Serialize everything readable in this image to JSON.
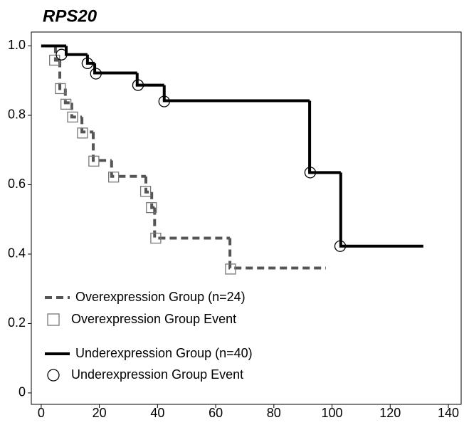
{
  "chart_data": {
    "type": "step",
    "title": "RPS20",
    "xlim": [
      -3.4,
      144.4
    ],
    "ylim": [
      -0.033,
      1.04
    ],
    "xticks": [
      0,
      20,
      40,
      60,
      80,
      100,
      120,
      140
    ],
    "yticks": [
      0,
      0.2,
      0.4,
      0.6,
      0.8,
      {
        "value": 1,
        "label": "1.0"
      }
    ],
    "legend": "lower left",
    "series": [
      {
        "name": "Overexpression Group (n=24)",
        "color": "#555555",
        "style": "dashed",
        "x": [
          0,
          4.9,
          6.4,
          8.3,
          10.5,
          14,
          17.9,
          24.2,
          36,
          38,
          39,
          64.9,
          97.9
        ],
        "values": [
          1,
          0.959,
          0.877,
          0.836,
          0.795,
          0.752,
          0.67,
          0.624,
          0.579,
          0.534,
          0.446,
          0.36,
          0.36
        ]
      },
      {
        "name": "Overexpression Group Event",
        "color": "#777777",
        "marker": "square",
        "x": [
          4.6,
          6.6,
          8.5,
          10.8,
          14.2,
          18.1,
          24.9,
          35.9,
          37.9,
          39.4,
          65.1
        ],
        "values": [
          0.959,
          0.877,
          0.832,
          0.795,
          0.749,
          0.668,
          0.622,
          0.581,
          0.534,
          0.446,
          0.357
        ]
      },
      {
        "name": "Underexpression Group (n=40)",
        "color": "#000000",
        "style": "solid",
        "x": [
          0,
          8.6,
          15.9,
          18.4,
          33,
          42.3,
          92.3,
          103,
          131.4
        ],
        "values": [
          1,
          0.975,
          0.95,
          0.922,
          0.887,
          0.842,
          0.635,
          0.423,
          0.423
        ]
      },
      {
        "name": "Underexpression Group Event",
        "color": "#000000",
        "marker": "circle",
        "x": [
          7,
          15.9,
          18.8,
          33.3,
          42.3,
          92.5,
          102.8
        ],
        "values": [
          0.975,
          0.95,
          0.92,
          0.887,
          0.84,
          0.635,
          0.423
        ]
      }
    ]
  }
}
